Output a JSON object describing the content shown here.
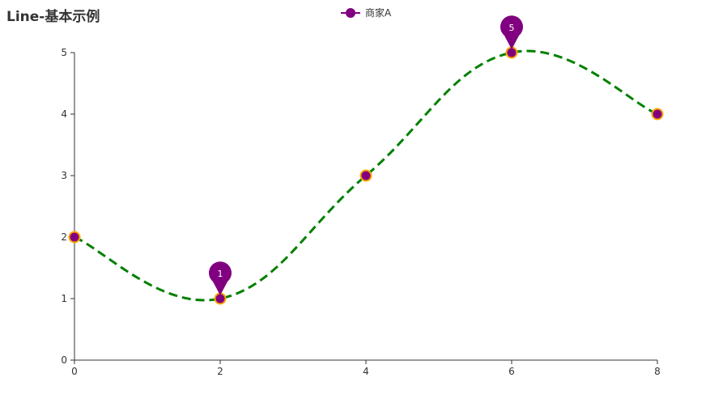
{
  "chart_data": {
    "type": "line",
    "title": "Line-基本示例",
    "x": [
      0,
      2,
      4,
      6,
      8
    ],
    "series": [
      {
        "name": "商家A",
        "values": [
          2,
          1,
          3,
          5,
          4
        ]
      }
    ],
    "xlim": [
      0,
      8
    ],
    "ylim": [
      0,
      5
    ],
    "x_ticks": [
      "0",
      "2",
      "4",
      "6",
      "8"
    ],
    "y_ticks": [
      "0",
      "1",
      "2",
      "3",
      "4",
      "5"
    ],
    "smooth": true,
    "line_style": "dashed",
    "line_color": "#008000",
    "marker_color": "#800080",
    "marker_border_color": "#FFA500",
    "grid": false,
    "legend_position": "top-center",
    "mark_points": [
      {
        "label": "max",
        "x": 6,
        "y": 5,
        "text": "5"
      },
      {
        "label": "min",
        "x": 2,
        "y": 1,
        "text": "1"
      }
    ]
  }
}
